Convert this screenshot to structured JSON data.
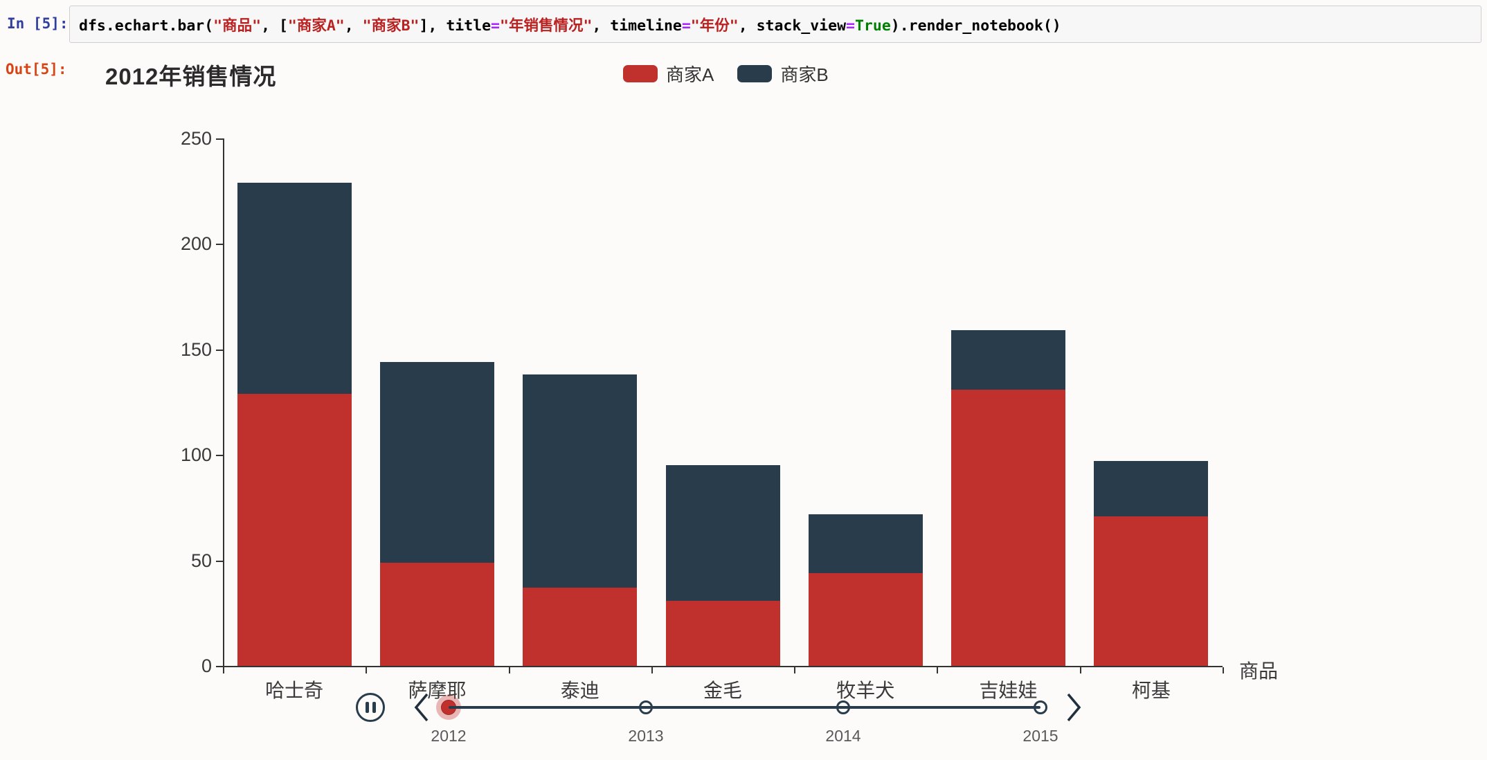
{
  "notebook": {
    "in_prompt": "In [5]:",
    "out_prompt": "Out[5]:",
    "code_tokens": [
      {
        "text": "dfs.echart.bar(",
        "type": "plain"
      },
      {
        "text": "\"商品\"",
        "type": "string"
      },
      {
        "text": ", [",
        "type": "plain"
      },
      {
        "text": "\"商家A\"",
        "type": "string"
      },
      {
        "text": ", ",
        "type": "plain"
      },
      {
        "text": "\"商家B\"",
        "type": "string"
      },
      {
        "text": "], title",
        "type": "plain"
      },
      {
        "text": "=",
        "type": "operator"
      },
      {
        "text": "\"年销售情况\"",
        "type": "string"
      },
      {
        "text": ", timeline",
        "type": "plain"
      },
      {
        "text": "=",
        "type": "operator"
      },
      {
        "text": "\"年份\"",
        "type": "string"
      },
      {
        "text": ", stack_view",
        "type": "plain"
      },
      {
        "text": "=",
        "type": "operator"
      },
      {
        "text": "True",
        "type": "keyword"
      },
      {
        "text": ").render_notebook()",
        "type": "plain"
      }
    ]
  },
  "chart_data": {
    "type": "bar",
    "stacked": true,
    "title": "2012年销售情况",
    "categories": [
      "哈士奇",
      "萨摩耶",
      "泰迪",
      "金毛",
      "牧羊犬",
      "吉娃娃",
      "柯基"
    ],
    "series": [
      {
        "name": "商家A",
        "color": "#c0302d",
        "values": [
          129,
          49,
          37,
          31,
          44,
          131,
          71
        ]
      },
      {
        "name": "商家B",
        "color": "#293c4c",
        "values": [
          100,
          95,
          101,
          64,
          28,
          28,
          26
        ]
      }
    ],
    "xlabel": "商品",
    "ylabel": "",
    "ylim": [
      0,
      250
    ],
    "y_ticks": [
      0,
      50,
      100,
      150,
      200,
      250
    ],
    "grid": false,
    "legend_position": "top-center",
    "timeline": {
      "axis_name": "年份",
      "years": [
        "2012",
        "2013",
        "2014",
        "2015"
      ],
      "current": "2012",
      "playing": true
    }
  }
}
